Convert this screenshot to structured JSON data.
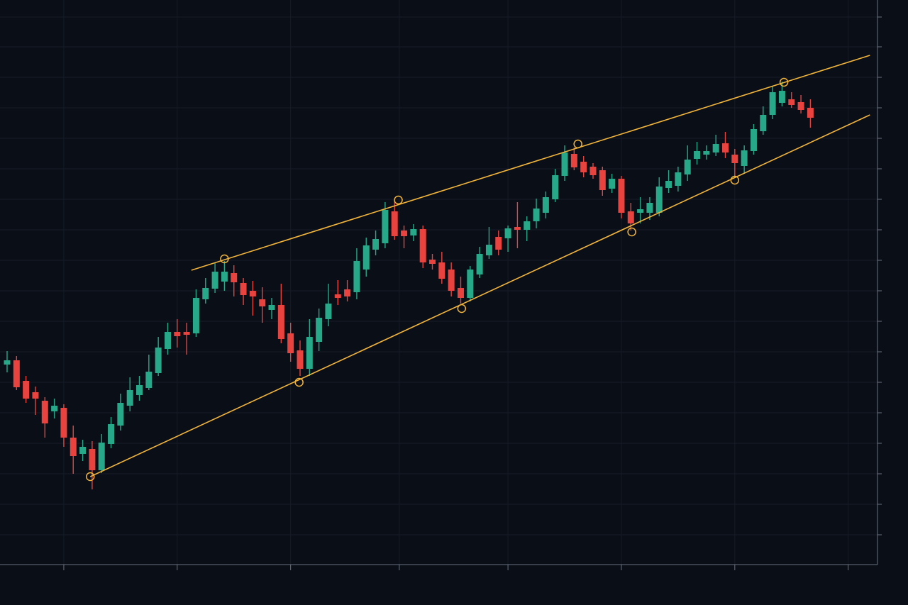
{
  "chart_data": {
    "type": "candlestick",
    "x": [
      0,
      1,
      2,
      3,
      4,
      5,
      6,
      7,
      8,
      9,
      10,
      11,
      12,
      13,
      14,
      15,
      16,
      17,
      18,
      19,
      20,
      21,
      22,
      23,
      24,
      25,
      26,
      27,
      28,
      29,
      30,
      31,
      32,
      33,
      34,
      35,
      36,
      37,
      38,
      39,
      40,
      41,
      42,
      43,
      44,
      45,
      46,
      47,
      48,
      49,
      50,
      51,
      52,
      53,
      54,
      55,
      56,
      57,
      58,
      59,
      60,
      61,
      62,
      63,
      64,
      65,
      66,
      67,
      68,
      69,
      70,
      71,
      72,
      73,
      74,
      75,
      76,
      77,
      78,
      79,
      80,
      81,
      82,
      83,
      84,
      85
    ],
    "open": [
      282,
      288,
      259,
      243,
      231,
      216,
      221,
      179,
      156,
      163,
      133,
      170,
      196,
      224,
      239,
      249,
      270,
      304,
      328,
      328,
      326,
      374,
      389,
      399,
      411,
      397,
      386,
      374,
      359,
      366,
      326,
      302,
      276,
      314,
      346,
      381,
      388,
      384,
      416,
      444,
      453,
      498,
      471,
      464,
      473,
      430,
      426,
      416,
      390,
      376,
      409,
      436,
      462,
      460,
      476,
      472,
      484,
      496,
      515,
      548,
      579,
      568,
      561,
      556,
      530,
      544,
      498,
      496,
      496,
      496,
      531,
      534,
      550,
      572,
      578,
      581,
      594,
      578,
      562,
      583,
      611,
      634,
      651,
      656,
      652,
      644
    ],
    "high": [
      301,
      294,
      266,
      251,
      236,
      234,
      226,
      196,
      176,
      174,
      184,
      208,
      241,
      264,
      266,
      296,
      321,
      341,
      346,
      341,
      388,
      404,
      426,
      428,
      422,
      404,
      400,
      391,
      376,
      396,
      341,
      316,
      346,
      361,
      396,
      401,
      401,
      446,
      461,
      471,
      511,
      513,
      478,
      480,
      478,
      438,
      441,
      426,
      406,
      421,
      448,
      476,
      471,
      478,
      511,
      491,
      516,
      526,
      558,
      591,
      588,
      576,
      566,
      561,
      551,
      548,
      510,
      518,
      518,
      546,
      556,
      561,
      591,
      596,
      591,
      606,
      610,
      586,
      591,
      621,
      646,
      674,
      681,
      666,
      662,
      656
    ],
    "low": [
      271,
      246,
      228,
      211,
      179,
      206,
      166,
      128,
      146,
      106,
      129,
      164,
      189,
      216,
      231,
      246,
      266,
      296,
      306,
      296,
      321,
      368,
      383,
      386,
      378,
      366,
      351,
      341,
      346,
      312,
      286,
      266,
      266,
      301,
      336,
      366,
      371,
      374,
      406,
      436,
      446,
      458,
      446,
      456,
      418,
      416,
      396,
      378,
      368,
      371,
      404,
      431,
      436,
      441,
      446,
      456,
      474,
      488,
      511,
      541,
      556,
      546,
      544,
      520,
      524,
      488,
      471,
      481,
      486,
      491,
      524,
      526,
      541,
      564,
      571,
      576,
      573,
      546,
      551,
      578,
      606,
      628,
      646,
      644,
      636,
      616
    ],
    "close": [
      288,
      250,
      234,
      234,
      199,
      224,
      179,
      153,
      166,
      133,
      172,
      198,
      228,
      246,
      253,
      272,
      306,
      328,
      322,
      324,
      376,
      390,
      413,
      413,
      398,
      380,
      378,
      364,
      366,
      318,
      298,
      276,
      321,
      348,
      368,
      376,
      378,
      428,
      450,
      459,
      500,
      463,
      463,
      473,
      426,
      424,
      403,
      386,
      376,
      416,
      438,
      451,
      444,
      474,
      472,
      484,
      502,
      518,
      549,
      581,
      560,
      553,
      549,
      528,
      544,
      496,
      481,
      501,
      510,
      533,
      541,
      553,
      571,
      583,
      583,
      593,
      581,
      566,
      584,
      614,
      634,
      666,
      668,
      648,
      641,
      630
    ],
    "up_color": "#26a889",
    "down_color": "#e8433f",
    "line_color": "#f2b53c",
    "xlim": [
      -0.75,
      92.1
    ],
    "ylim": [
      0,
      796
    ],
    "xticks": [
      6,
      18,
      30,
      41.5,
      53,
      65,
      77,
      89
    ],
    "yticks": [
      42,
      85,
      128,
      171,
      214,
      257,
      300,
      343,
      386,
      429,
      472,
      515,
      558,
      601,
      644,
      687,
      730,
      772
    ],
    "grid": true,
    "trendlines": [
      {
        "x": [
          19.5,
          91.3
        ],
        "y": [
          415,
          718
        ]
      },
      {
        "x": [
          8.8,
          91.3
        ],
        "y": [
          124,
          634
        ]
      }
    ],
    "touch_points": {
      "x": [
        23,
        41.4,
        60.4,
        82.2,
        8.8,
        30.9,
        48.1,
        66.1,
        77
      ],
      "y": [
        431,
        514,
        593,
        680,
        124,
        257,
        361,
        469,
        542
      ]
    }
  }
}
